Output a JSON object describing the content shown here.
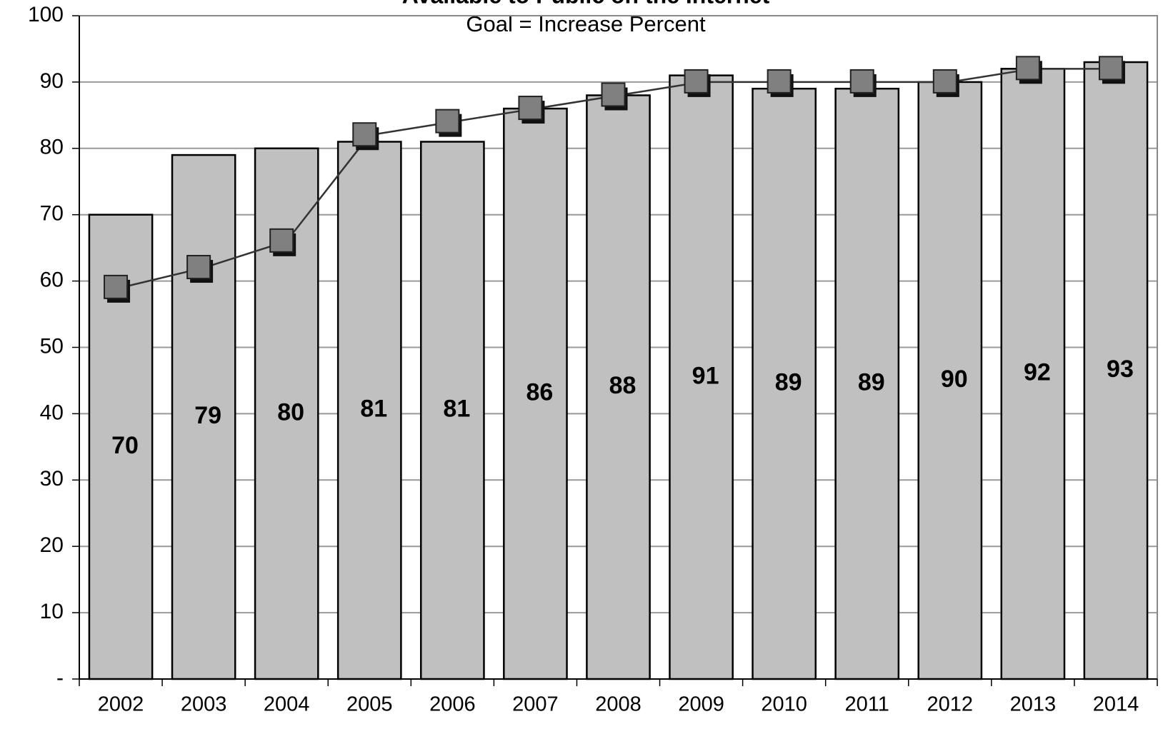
{
  "chart_data": {
    "type": "bar-line",
    "title": "Available to Public on the Internet",
    "subtitle": "Goal = Increase Percent",
    "categories": [
      "2002",
      "2003",
      "2004",
      "2005",
      "2006",
      "2007",
      "2008",
      "2009",
      "2010",
      "2011",
      "2012",
      "2013",
      "2014"
    ],
    "series": [
      {
        "type": "bar",
        "color": "#c0c0c0",
        "values": [
          70,
          79,
          80,
          81,
          81,
          86,
          88,
          91,
          89,
          89,
          90,
          92,
          93
        ]
      },
      {
        "type": "line",
        "color": "#808080",
        "values": [
          59,
          62,
          66,
          82,
          84,
          86,
          88,
          90,
          90,
          90,
          90,
          92,
          92
        ]
      }
    ],
    "ylim": [
      0,
      100
    ],
    "yticks": [
      {
        "value": 0,
        "label": "-"
      },
      10,
      20,
      30,
      40,
      50,
      60,
      70,
      80,
      90,
      100
    ],
    "grid": true
  }
}
